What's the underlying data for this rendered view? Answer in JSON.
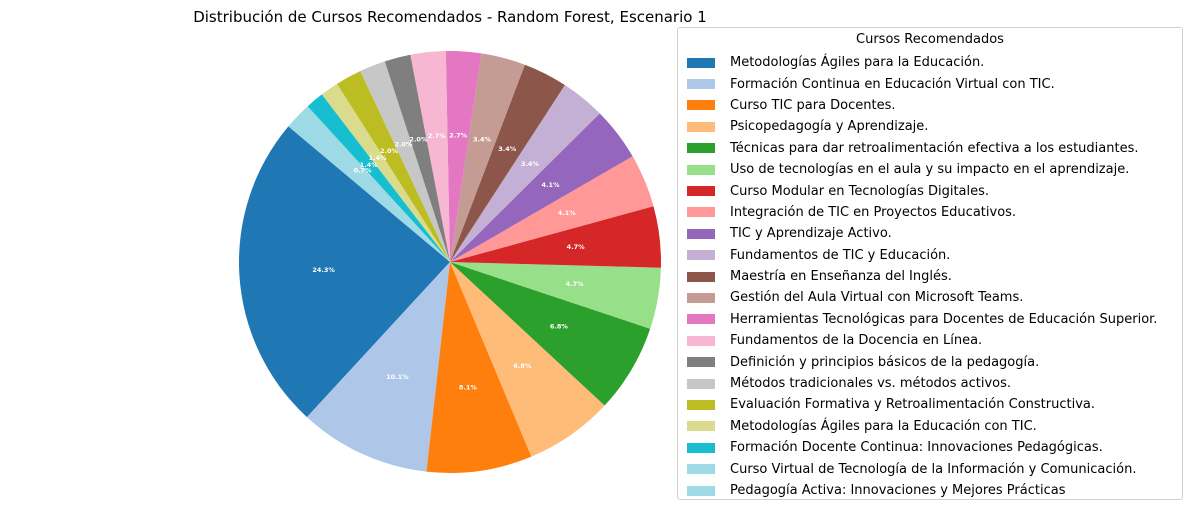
{
  "chart_data": {
    "type": "pie",
    "title": "Distribución de Cursos Recomendados - Random Forest, Escenario 1",
    "legend_title": "Cursos Recomendados",
    "legend_position": "right",
    "start_angle_deg": 140,
    "direction": "counterclockwise",
    "slices": [
      {
        "label": "Metodologías Ágiles para la Educación.",
        "value": 24.3,
        "pct_label": "24.3%",
        "color": "#1f77b4"
      },
      {
        "label": "Formación Continua en Educación Virtual con TIC.",
        "value": 10.1,
        "pct_label": "10.1%",
        "color": "#aec7e8"
      },
      {
        "label": "Curso TIC para Docentes.",
        "value": 8.1,
        "pct_label": "8.1%",
        "color": "#ff7f0e"
      },
      {
        "label": "Psicopedagogía y Aprendizaje.",
        "value": 6.8,
        "pct_label": "6.8%",
        "color": "#ffbb78"
      },
      {
        "label": "Técnicas para dar retroalimentación efectiva a los estudiantes.",
        "value": 6.8,
        "pct_label": "6.8%",
        "color": "#2ca02c"
      },
      {
        "label": "Uso de tecnologías en el aula y su impacto en el aprendizaje.",
        "value": 4.7,
        "pct_label": "4.7%",
        "color": "#98df8a"
      },
      {
        "label": "Curso Modular en Tecnologías Digitales.",
        "value": 4.7,
        "pct_label": "4.7%",
        "color": "#d62728"
      },
      {
        "label": "Integración de TIC en Proyectos Educativos.",
        "value": 4.1,
        "pct_label": "4.1%",
        "color": "#ff9896"
      },
      {
        "label": "TIC y Aprendizaje Activo.",
        "value": 4.1,
        "pct_label": "4.1%",
        "color": "#9467bd"
      },
      {
        "label": "Fundamentos de TIC y Educación.",
        "value": 3.4,
        "pct_label": "3.4%",
        "color": "#c5b0d5"
      },
      {
        "label": "Maestría en Enseñanza del Inglés.",
        "value": 3.4,
        "pct_label": "3.4%",
        "color": "#8c564b"
      },
      {
        "label": "Gestión del Aula Virtual con Microsoft Teams.",
        "value": 3.4,
        "pct_label": "3.4%",
        "color": "#c49c94"
      },
      {
        "label": "Herramientas Tecnológicas para Docentes de Educación Superior.",
        "value": 2.7,
        "pct_label": "2.7%",
        "color": "#e377c2"
      },
      {
        "label": "Fundamentos de la Docencia en Línea.",
        "value": 2.7,
        "pct_label": "2.7%",
        "color": "#f7b6d2"
      },
      {
        "label": "Definición y principios básicos de la pedagogía.",
        "value": 2.0,
        "pct_label": "2.0%",
        "color": "#7f7f7f"
      },
      {
        "label": "Métodos tradicionales vs. métodos activos.",
        "value": 2.0,
        "pct_label": "2.0%",
        "color": "#c7c7c7"
      },
      {
        "label": "Evaluación Formativa y Retroalimentación Constructiva.",
        "value": 2.0,
        "pct_label": "2.0%",
        "color": "#bcbd22"
      },
      {
        "label": "Metodologías Ágiles para la Educación con TIC.",
        "value": 1.4,
        "pct_label": "1.4%",
        "color": "#dbdb8d"
      },
      {
        "label": "Formación Docente Continua: Innovaciones Pedagógicas.",
        "value": 1.4,
        "pct_label": "1.4%",
        "color": "#17becf"
      },
      {
        "label": "Curso Virtual de Tecnología de la Información y Comunicación.",
        "value": 0.7,
        "pct_label": "0.7%",
        "color": "#9edae5"
      },
      {
        "label": "Pedagogía Activa: Innovaciones y Mejores Prácticas",
        "value": 1.4,
        "pct_label": "",
        "color": "#9edae5"
      }
    ]
  }
}
